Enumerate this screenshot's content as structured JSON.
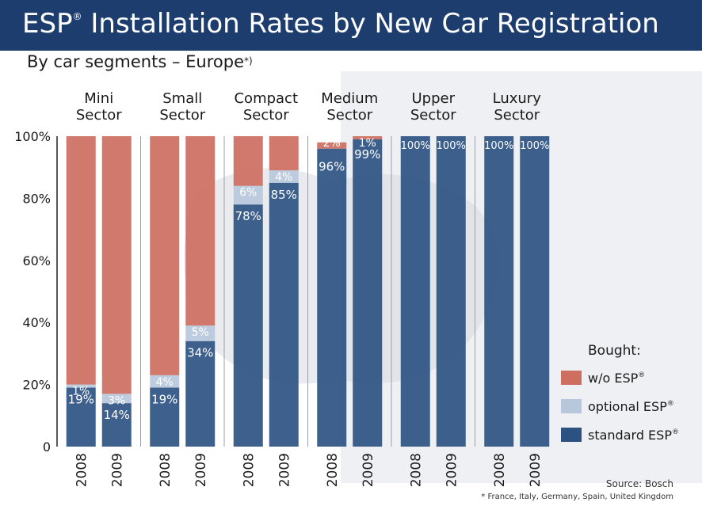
{
  "header": {
    "title": "ESP",
    "title_mark": "®",
    "title_rest": " Installation Rates by New Car Registration"
  },
  "subtitle": {
    "text": "By car segments – Europe",
    "mark": "*)"
  },
  "source": "Source: Bosch",
  "footnote": "* France, Italy, Germany, Spain, United Kingdom",
  "colors": {
    "header": "#1d3d6e",
    "wo_esp": "#cd6e5f",
    "optional_esp": "#b7c8dc",
    "standard_esp": "#2c5282"
  },
  "chart_data": {
    "type": "bar",
    "stacked": true,
    "groups": [
      {
        "label_lines": [
          "Mini",
          "Sector"
        ],
        "years": [
          "2008",
          "2009"
        ],
        "standard": [
          19,
          14
        ],
        "optional": [
          1,
          3
        ],
        "wo": [
          80,
          83
        ],
        "labels": [
          {
            "standard": "19%",
            "optional": "1%",
            "wo": ""
          },
          {
            "standard": "14%",
            "optional": "3%",
            "wo": ""
          }
        ]
      },
      {
        "label_lines": [
          "Small",
          "Sector"
        ],
        "years": [
          "2008",
          "2009"
        ],
        "standard": [
          19,
          34
        ],
        "optional": [
          4,
          5
        ],
        "wo": [
          77,
          61
        ],
        "labels": [
          {
            "standard": "19%",
            "optional": "4%",
            "wo": ""
          },
          {
            "standard": "34%",
            "optional": "5%",
            "wo": ""
          }
        ]
      },
      {
        "label_lines": [
          "Compact",
          "Sector"
        ],
        "years": [
          "2008",
          "2009"
        ],
        "standard": [
          78,
          85
        ],
        "optional": [
          6,
          4
        ],
        "wo": [
          16,
          11
        ],
        "labels": [
          {
            "standard": "78%",
            "optional": "6%",
            "wo": ""
          },
          {
            "standard": "85%",
            "optional": "4%",
            "wo": ""
          }
        ]
      },
      {
        "label_lines": [
          "Medium",
          "Sector"
        ],
        "years": [
          "2008",
          "2009"
        ],
        "standard": [
          96,
          99
        ],
        "optional": [
          0,
          0
        ],
        "wo": [
          2,
          1
        ],
        "labels": [
          {
            "standard": "96%",
            "optional": "",
            "wo": "2%"
          },
          {
            "standard": "99%",
            "optional": "",
            "wo": "1%"
          }
        ]
      },
      {
        "label_lines": [
          "Upper",
          "Sector"
        ],
        "years": [
          "2008",
          "2009"
        ],
        "standard": [
          100,
          100
        ],
        "optional": [
          0,
          0
        ],
        "wo": [
          0,
          0
        ],
        "labels": [
          {
            "standard": "100%",
            "optional": "",
            "wo": ""
          },
          {
            "standard": "100%",
            "optional": "",
            "wo": ""
          }
        ]
      },
      {
        "label_lines": [
          "Luxury",
          "Sector"
        ],
        "years": [
          "2008",
          "2009"
        ],
        "standard": [
          100,
          100
        ],
        "optional": [
          0,
          0
        ],
        "wo": [
          0,
          0
        ],
        "labels": [
          {
            "standard": "100%",
            "optional": "",
            "wo": ""
          },
          {
            "standard": "100%",
            "optional": "",
            "wo": ""
          }
        ]
      }
    ],
    "yticks": [
      {
        "value": 0,
        "label": "0"
      },
      {
        "value": 20,
        "label": "20%"
      },
      {
        "value": 40,
        "label": "40%"
      },
      {
        "value": 60,
        "label": "60%"
      },
      {
        "value": 80,
        "label": "80%"
      },
      {
        "value": 100,
        "label": "100%"
      }
    ],
    "ylim": [
      0,
      100
    ],
    "legend": {
      "title": "Bought:",
      "placement": "bottom-right",
      "items": [
        {
          "key": "wo",
          "label": "w/o ESP",
          "mark": "®"
        },
        {
          "key": "optional",
          "label": "optional ESP",
          "mark": "®"
        },
        {
          "key": "standard",
          "label": "standard ESP",
          "mark": "®"
        }
      ]
    }
  }
}
